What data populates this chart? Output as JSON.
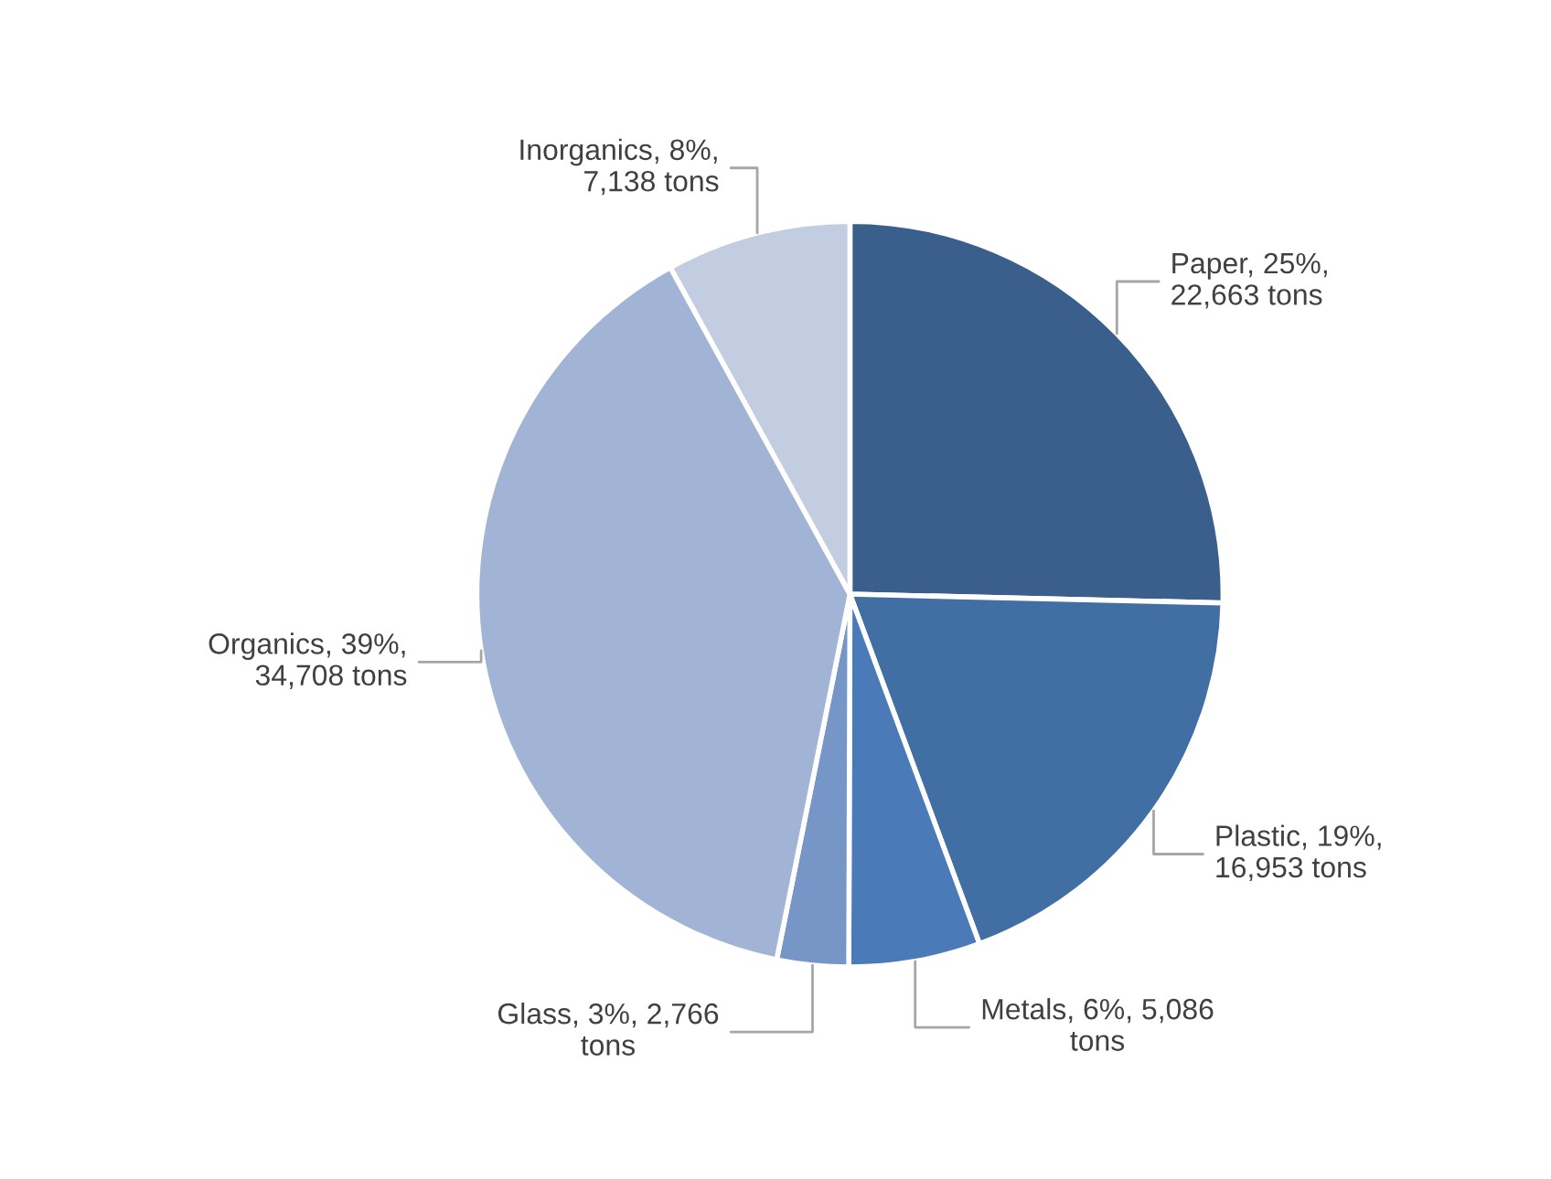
{
  "chart_data": {
    "type": "pie",
    "categories": [
      "Paper",
      "Plastic",
      "Metals",
      "Glass",
      "Organics",
      "Inorganics"
    ],
    "values": [
      22663,
      16953,
      5086,
      2766,
      34708,
      7138
    ],
    "value_labels": [
      "25%,\n22,663 tons",
      "19%,\n16,953 tons",
      "6%, 5,086\ntons",
      "3%, 2,766\ntons",
      "39%,\n34,708 tons",
      "8%,\n7,138 tons"
    ],
    "colors": [
      "#3a5f8c",
      "#416fa3",
      "#4a7ab8",
      "#7796c8",
      "#a2b4d5",
      "#c3cde2"
    ]
  }
}
